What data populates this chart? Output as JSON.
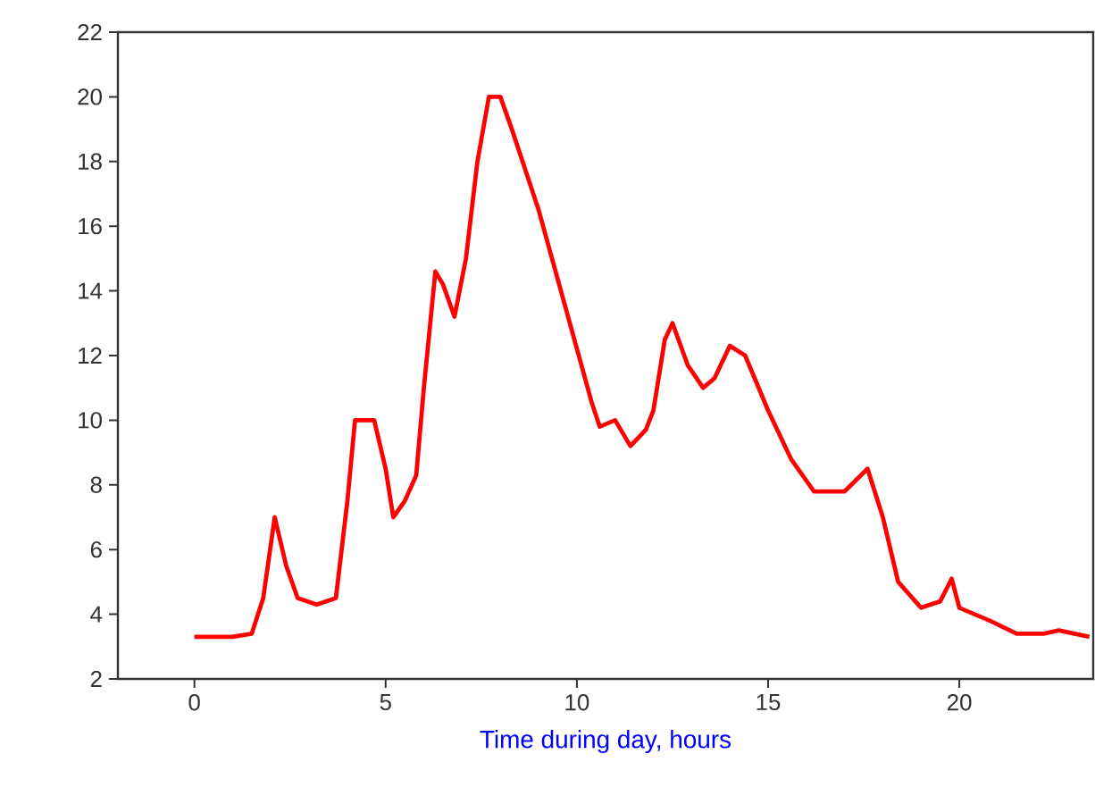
{
  "chart_data": {
    "type": "line",
    "xlabel": "Time during day, hours",
    "x": [
      0,
      1,
      1.5,
      1.8,
      2.1,
      2.4,
      2.7,
      3.2,
      3.7,
      4.0,
      4.2,
      4.7,
      5.0,
      5.2,
      5.5,
      5.8,
      6.0,
      6.3,
      6.5,
      6.8,
      7.1,
      7.4,
      7.7,
      8.0,
      8.3,
      9.0,
      9.7,
      10.4,
      10.6,
      11.0,
      11.4,
      11.8,
      12.0,
      12.3,
      12.5,
      12.9,
      13.3,
      13.6,
      14.0,
      14.4,
      15.0,
      15.6,
      16.2,
      17.0,
      17.6,
      18.0,
      18.4,
      19.0,
      19.5,
      19.8,
      20.0,
      20.8,
      21.5,
      22.2,
      22.6,
      23.4
    ],
    "series": [
      {
        "color": "#ff0000",
        "values": [
          3.3,
          3.3,
          3.4,
          4.5,
          7.0,
          5.5,
          4.5,
          4.3,
          4.5,
          7.5,
          10,
          10,
          8.5,
          7.0,
          7.5,
          8.3,
          11,
          14.6,
          14.2,
          13.2,
          15,
          18,
          20,
          20,
          19,
          16.5,
          13.5,
          10.5,
          9.8,
          10.0,
          9.2,
          9.7,
          10.3,
          12.5,
          13,
          11.7,
          11,
          11.3,
          12.3,
          12.0,
          10.3,
          8.8,
          7.8,
          7.8,
          8.5,
          7.0,
          5.0,
          4.2,
          4.4,
          5.1,
          4.2,
          3.8,
          3.4,
          3.4,
          3.5,
          3.3
        ]
      }
    ],
    "xlim": [
      -2,
      23.5
    ],
    "ylim": [
      2,
      22
    ],
    "xticks": [
      0,
      5,
      10,
      15,
      20
    ],
    "yticks": [
      2,
      4,
      6,
      8,
      10,
      12,
      14,
      16,
      18,
      20,
      22
    ],
    "grid": false,
    "marker": "none",
    "line_style": "solid"
  }
}
